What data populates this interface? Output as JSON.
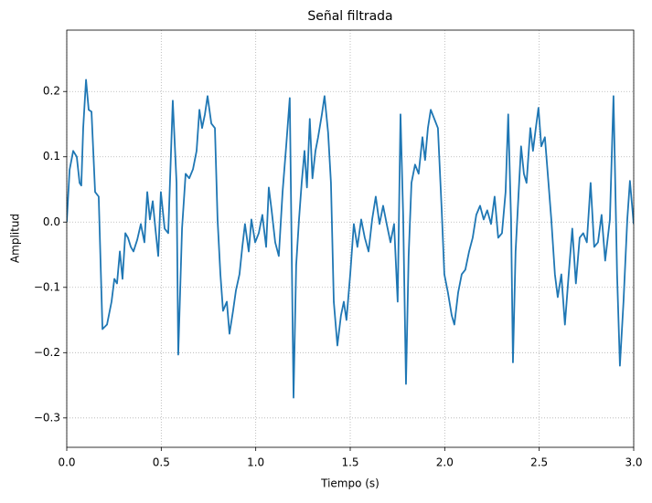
{
  "chart_data": {
    "type": "line",
    "title": "Señal filtrada",
    "x_label": "Tiempo (s)",
    "y_label": "Amplitud",
    "x": [
      0,
      0.015,
      0.034,
      0.053,
      0.068,
      0.077,
      0.087,
      0.102,
      0.116,
      0.131,
      0.15,
      0.169,
      0.189,
      0.213,
      0.237,
      0.252,
      0.266,
      0.281,
      0.295,
      0.31,
      0.324,
      0.339,
      0.353,
      0.373,
      0.392,
      0.411,
      0.426,
      0.44,
      0.455,
      0.469,
      0.484,
      0.498,
      0.518,
      0.537,
      0.561,
      0.581,
      0.59,
      0.61,
      0.629,
      0.648,
      0.668,
      0.687,
      0.702,
      0.716,
      0.731,
      0.745,
      0.765,
      0.784,
      0.798,
      0.813,
      0.827,
      0.847,
      0.861,
      0.88,
      0.895,
      0.914,
      0.929,
      0.943,
      0.963,
      0.977,
      0.997,
      1.016,
      1.035,
      1.055,
      1.069,
      1.084,
      1.103,
      1.122,
      1.142,
      1.161,
      1.18,
      1.2,
      1.214,
      1.229,
      1.243,
      1.258,
      1.271,
      1.286,
      1.3,
      1.316,
      1.33,
      1.35,
      1.364,
      1.383,
      1.398,
      1.413,
      1.432,
      1.451,
      1.466,
      1.48,
      1.5,
      1.519,
      1.538,
      1.558,
      1.577,
      1.597,
      1.616,
      1.635,
      1.655,
      1.674,
      1.693,
      1.713,
      1.732,
      1.751,
      1.766,
      1.78,
      1.795,
      1.809,
      1.824,
      1.843,
      1.862,
      1.882,
      1.896,
      1.911,
      1.926,
      1.945,
      1.964,
      1.984,
      1.998,
      2.017,
      2.037,
      2.051,
      2.071,
      2.09,
      2.109,
      2.129,
      2.148,
      2.167,
      2.187,
      2.206,
      2.225,
      2.245,
      2.264,
      2.283,
      2.303,
      2.322,
      2.336,
      2.351,
      2.361,
      2.375,
      2.39,
      2.404,
      2.419,
      2.433,
      2.453,
      2.467,
      2.482,
      2.496,
      2.511,
      2.53,
      2.549,
      2.564,
      2.583,
      2.598,
      2.617,
      2.636,
      2.656,
      2.675,
      2.694,
      2.714,
      2.733,
      2.752,
      2.772,
      2.791,
      2.811,
      2.83,
      2.849,
      2.874,
      2.893,
      2.912,
      2.927,
      2.946,
      2.966,
      2.98,
      3.0
    ],
    "series": [
      {
        "name": "Señal",
        "color": "#1f77b4",
        "values": [
          0,
          0.08,
          0.109,
          0.1,
          0.06,
          0.056,
          0.144,
          0.218,
          0.172,
          0.169,
          0.046,
          0.039,
          -0.164,
          -0.157,
          -0.122,
          -0.087,
          -0.094,
          -0.045,
          -0.087,
          -0.017,
          -0.024,
          -0.038,
          -0.045,
          -0.027,
          -0.003,
          -0.031,
          0.046,
          0.004,
          0.032,
          -0.01,
          -0.052,
          0.046,
          -0.01,
          -0.017,
          0.186,
          0.06,
          -0.203,
          -0.01,
          0.074,
          0.067,
          0.081,
          0.109,
          0.172,
          0.144,
          0.165,
          0.193,
          0.151,
          0.144,
          0.004,
          -0.08,
          -0.136,
          -0.122,
          -0.171,
          -0.136,
          -0.105,
          -0.08,
          -0.038,
          -0.003,
          -0.045,
          0.004,
          -0.031,
          -0.017,
          0.011,
          -0.038,
          0.053,
          0.018,
          -0.031,
          -0.052,
          0.046,
          0.116,
          0.19,
          -0.269,
          -0.066,
          0.004,
          0.06,
          0.109,
          0.053,
          0.158,
          0.067,
          0.109,
          0.13,
          0.165,
          0.193,
          0.137,
          0.06,
          -0.122,
          -0.189,
          -0.143,
          -0.122,
          -0.15,
          -0.08,
          -0.003,
          -0.038,
          0.004,
          -0.024,
          -0.045,
          0.004,
          0.039,
          -0.003,
          0.025,
          -0.003,
          -0.031,
          -0.003,
          -0.122,
          0.165,
          0.011,
          -0.248,
          -0.052,
          0.06,
          0.088,
          0.074,
          0.13,
          0.095,
          0.144,
          0.172,
          0.158,
          0.144,
          0.018,
          -0.08,
          -0.108,
          -0.143,
          -0.157,
          -0.108,
          -0.08,
          -0.073,
          -0.045,
          -0.024,
          0.011,
          0.025,
          0.004,
          0.018,
          -0.003,
          0.039,
          -0.024,
          -0.017,
          0.046,
          0.165,
          0.004,
          -0.215,
          -0.045,
          0.039,
          0.116,
          0.074,
          0.06,
          0.144,
          0.109,
          0.144,
          0.175,
          0.116,
          0.13,
          0.06,
          0.004,
          -0.08,
          -0.115,
          -0.08,
          -0.157,
          -0.08,
          -0.01,
          -0.094,
          -0.024,
          -0.017,
          -0.031,
          0.06,
          -0.038,
          -0.031,
          0.011,
          -0.059,
          0.004,
          0.193,
          -0.08,
          -0.22,
          -0.122,
          0.004,
          0.063,
          -0.003
        ]
      }
    ],
    "xlim": [
      0,
      3
    ],
    "ylim": [
      -0.345,
      0.294
    ],
    "xticks": [
      {
        "value": 0,
        "label": "0.0"
      },
      0.5,
      {
        "value": 1,
        "label": "1.0"
      },
      1.5,
      {
        "value": 2,
        "label": "2.0"
      },
      2.5,
      {
        "value": 3,
        "label": "3.0"
      }
    ],
    "yticks": [
      {
        "value": -0.3,
        "label": "−0.3"
      },
      {
        "value": -0.2,
        "label": "−0.2"
      },
      {
        "value": -0.1,
        "label": "−0.1"
      },
      {
        "value": 0,
        "label": "0.0"
      },
      0.1,
      0.2
    ],
    "grid": true
  }
}
